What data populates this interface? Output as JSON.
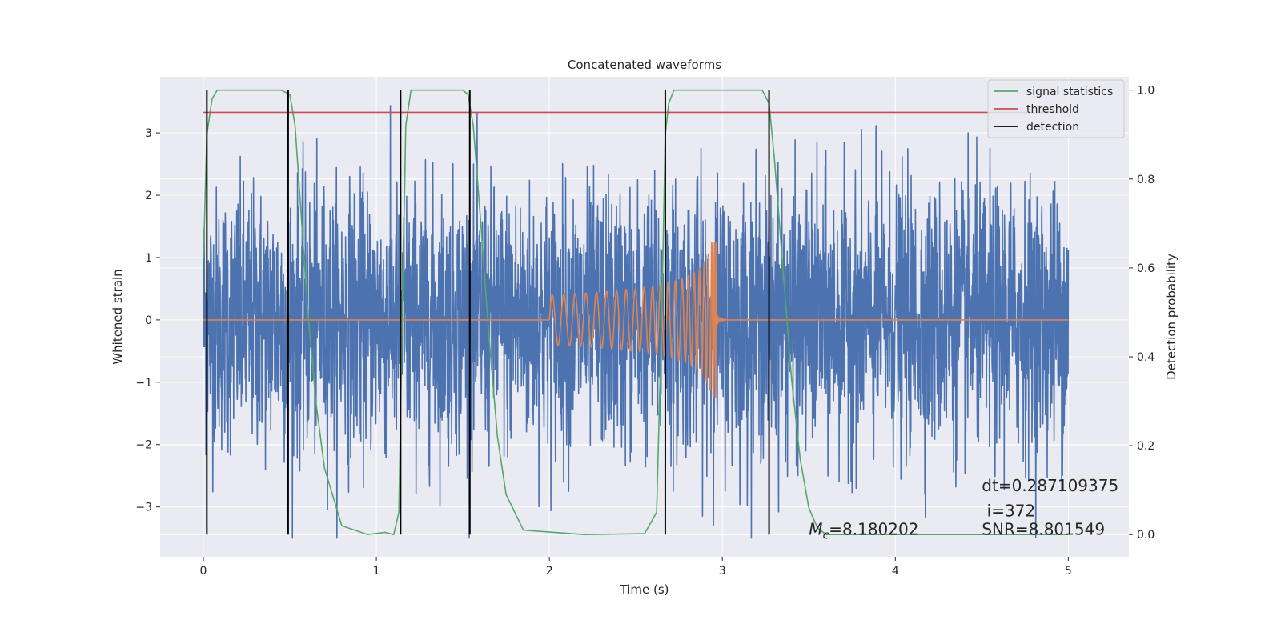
{
  "chart_data": {
    "type": "line",
    "title": "Concatenated waveforms",
    "xlabel": "Time (s)",
    "ylabel": "Whitened strain",
    "ylabel_right": "Detection probability",
    "xlim": [
      -0.25,
      5.35
    ],
    "ylim": [
      -3.8,
      3.9
    ],
    "ylim_right": [
      -0.05,
      1.03
    ],
    "xticks": [
      0,
      1,
      2,
      3,
      4,
      5
    ],
    "xtick_labels": [
      "0",
      "1",
      "2",
      "3",
      "4",
      "5"
    ],
    "yticks": [
      -3,
      -2,
      -1,
      0,
      1,
      2,
      3
    ],
    "ytick_labels": [
      "−3",
      "−2",
      "−1",
      "0",
      "1",
      "2",
      "3"
    ],
    "yticks_right": [
      0.0,
      0.2,
      0.4,
      0.6,
      0.8,
      1.0
    ],
    "ytick_labels_right": [
      "0.0",
      "0.2",
      "0.4",
      "0.6",
      "0.8",
      "1.0"
    ],
    "grid": true,
    "legend_position": "top-right",
    "colors": {
      "background": "#eaeaf2",
      "grid": "#ffffff",
      "noise": "#4c72b0",
      "waveform": "#dd8452",
      "signal_statistics": "#55a868",
      "threshold": "#c44e52",
      "detection": "#000000"
    },
    "series": [
      {
        "name": "whitened strain (noise)",
        "axis": "left",
        "x_range": [
          0,
          5
        ],
        "amplitude_typical": 1.5,
        "amplitude_max": 3.5
      },
      {
        "name": "injected waveform",
        "axis": "left",
        "x_range": [
          2.0,
          3.0
        ],
        "peak_time": 2.96,
        "peak_amplitude": 1.25,
        "start_amplitude": 0.4
      },
      {
        "name": "signal statistics",
        "axis": "right",
        "x": [
          0.0,
          0.02,
          0.05,
          0.08,
          0.45,
          0.5,
          0.53,
          0.56,
          0.6,
          0.65,
          0.7,
          0.8,
          0.95,
          1.05,
          1.1,
          1.13,
          1.15,
          1.17,
          1.2,
          1.5,
          1.53,
          1.56,
          1.6,
          1.65,
          1.7,
          1.75,
          1.85,
          2.2,
          2.55,
          2.62,
          2.65,
          2.67,
          2.69,
          2.72,
          2.76,
          3.23,
          3.27,
          3.3,
          3.35,
          3.4,
          3.45,
          3.5,
          3.55,
          3.6,
          5.0
        ],
        "values": [
          0.62,
          0.9,
          0.98,
          1.0,
          1.0,
          0.99,
          0.92,
          0.75,
          0.52,
          0.3,
          0.15,
          0.02,
          0.0,
          0.005,
          0.0,
          0.05,
          0.5,
          0.92,
          1.0,
          1.0,
          0.99,
          0.92,
          0.72,
          0.45,
          0.22,
          0.09,
          0.01,
          0.0,
          0.002,
          0.05,
          0.5,
          0.9,
          0.97,
          1.0,
          1.0,
          1.0,
          0.97,
          0.85,
          0.6,
          0.35,
          0.17,
          0.06,
          0.015,
          0.0,
          0.0
        ]
      },
      {
        "name": "threshold",
        "axis": "right",
        "x": [
          0.0,
          5.0
        ],
        "values": [
          0.95,
          0.95
        ]
      }
    ],
    "detections": [
      0.02,
      0.49,
      1.14,
      1.54,
      2.67,
      3.27
    ],
    "legend": [
      {
        "label": "signal statistics",
        "color": "#55a868"
      },
      {
        "label": "threshold",
        "color": "#c44e52"
      },
      {
        "label": "detection",
        "color": "#000000"
      }
    ],
    "annotations": [
      {
        "text": "dt=0.287109375",
        "x": 4.5,
        "y": -2.75
      },
      {
        "text": " i=372",
        "x": 4.5,
        "y": -3.15
      },
      {
        "text": "SNR=8.801549",
        "x": 4.5,
        "y": -3.45
      },
      {
        "text": "=8.180202",
        "label_prefix": "M",
        "label_subscript": "c",
        "x": 3.5,
        "y": -3.45
      }
    ]
  }
}
